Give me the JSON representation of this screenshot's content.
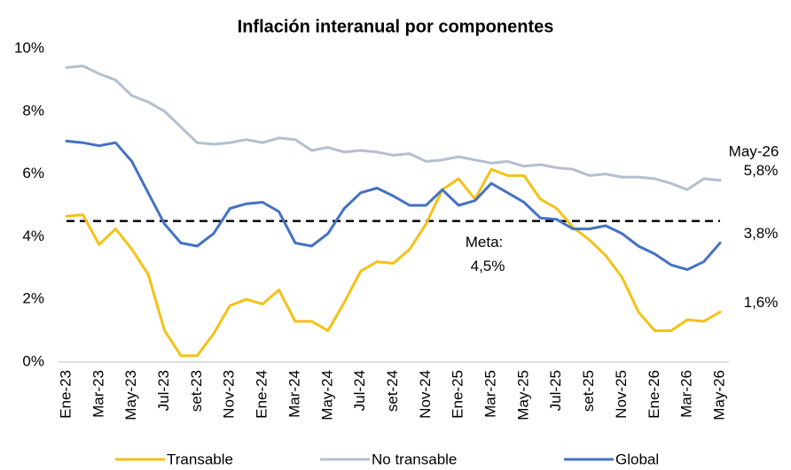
{
  "chart_data": {
    "type": "line",
    "title": "Inflación interanual por componentes",
    "categories": [
      "Ene-23",
      null,
      "Mar-23",
      null,
      "May-23",
      null,
      "Jul-23",
      null,
      "set-23",
      null,
      "Nov-23",
      null,
      "Ene-24",
      null,
      "Mar-24",
      null,
      "May-24",
      null,
      "Jul-24",
      null,
      "set-24",
      null,
      "Nov-24",
      null,
      "Ene-25",
      null,
      "Mar-25",
      null,
      "May-25",
      null,
      "Jul-25",
      null,
      "set-25",
      null,
      "Nov-25",
      null,
      "Ene-26",
      null,
      "Mar-26",
      null,
      "May-26"
    ],
    "series": [
      {
        "name": "Transable",
        "color": "#f5c116",
        "values": [
          4.65,
          4.7,
          3.75,
          4.25,
          3.6,
          2.8,
          1.0,
          0.2,
          0.2,
          0.9,
          1.8,
          2.0,
          1.85,
          2.3,
          1.3,
          1.3,
          1.0,
          1.9,
          2.9,
          3.2,
          3.15,
          3.6,
          4.4,
          5.5,
          5.85,
          5.2,
          6.15,
          5.95,
          5.95,
          5.2,
          4.9,
          4.3,
          3.9,
          3.4,
          2.7,
          1.6,
          1.0,
          1.0,
          1.35,
          1.3,
          1.6
        ],
        "value_labels": [
          null,
          null,
          null,
          null,
          null,
          null,
          null,
          null,
          null,
          null,
          null,
          null,
          null,
          null,
          null,
          null,
          null,
          null,
          null,
          null,
          null,
          null,
          null,
          null,
          null,
          null,
          null,
          null,
          null,
          null,
          null,
          null,
          null,
          null,
          null,
          null,
          null,
          null,
          null,
          null,
          "1,6%"
        ]
      },
      {
        "name": "No transable",
        "color": "#b4bfcf",
        "values": [
          9.4,
          9.45,
          9.2,
          9.0,
          8.5,
          8.3,
          8.0,
          7.5,
          7.0,
          6.95,
          7.0,
          7.1,
          7.0,
          7.15,
          7.1,
          6.75,
          6.85,
          6.7,
          6.75,
          6.7,
          6.6,
          6.65,
          6.4,
          6.45,
          6.55,
          6.45,
          6.35,
          6.4,
          6.25,
          6.3,
          6.2,
          6.15,
          5.95,
          6.0,
          5.9,
          5.9,
          5.85,
          5.7,
          5.5,
          5.85,
          5.8
        ],
        "value_labels": [
          null,
          null,
          null,
          null,
          null,
          null,
          null,
          null,
          null,
          null,
          null,
          null,
          null,
          null,
          null,
          null,
          null,
          null,
          null,
          null,
          null,
          null,
          null,
          null,
          null,
          null,
          null,
          null,
          null,
          null,
          null,
          null,
          null,
          null,
          null,
          null,
          null,
          null,
          null,
          null,
          "5,8%"
        ]
      },
      {
        "name": "Global",
        "color": "#4472c4",
        "values": [
          7.05,
          7.0,
          6.9,
          7.0,
          6.4,
          5.4,
          4.4,
          3.8,
          3.7,
          4.1,
          4.9,
          5.05,
          5.1,
          4.8,
          3.8,
          3.7,
          4.1,
          4.9,
          5.4,
          5.55,
          5.3,
          5.0,
          5.0,
          5.5,
          5.0,
          5.15,
          5.7,
          5.4,
          5.1,
          4.6,
          4.55,
          4.25,
          4.25,
          4.35,
          4.1,
          3.7,
          3.45,
          3.1,
          2.95,
          3.2,
          3.8
        ],
        "value_labels": [
          null,
          null,
          null,
          null,
          null,
          null,
          null,
          null,
          null,
          null,
          null,
          null,
          null,
          null,
          null,
          null,
          null,
          null,
          null,
          null,
          null,
          null,
          null,
          null,
          null,
          null,
          null,
          null,
          null,
          null,
          null,
          null,
          null,
          null,
          null,
          null,
          null,
          null,
          null,
          null,
          "3,8%"
        ]
      }
    ],
    "reference_line": {
      "value": 4.5,
      "label": "Meta:",
      "value_label": "4,5%"
    },
    "annotations": [
      {
        "text": "May-26"
      }
    ],
    "ylim": [
      0,
      10
    ],
    "yticks": [
      {
        "value": 0,
        "label": "0%"
      },
      {
        "value": 2,
        "label": "2%"
      },
      {
        "value": 4,
        "label": "4%"
      },
      {
        "value": 6,
        "label": "6%"
      },
      {
        "value": 8,
        "label": "8%"
      },
      {
        "value": 10,
        "label": "10%"
      }
    ],
    "grid": false,
    "legend": "bottom"
  }
}
